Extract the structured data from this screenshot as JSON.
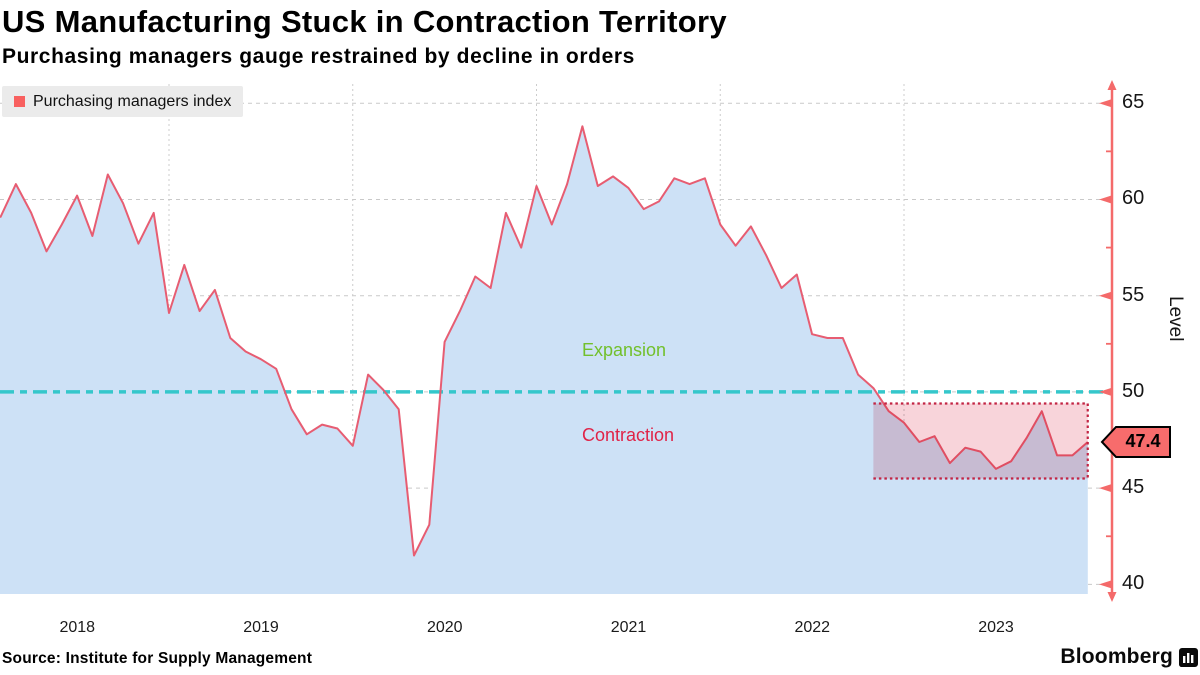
{
  "chart_data": {
    "type": "area",
    "title": "US Manufacturing Stuck in Contraction Territory",
    "subtitle": "Purchasing managers gauge restrained by decline in orders",
    "source": "Source: Institute for Supply Management",
    "brand": "Bloomberg",
    "ylabel": "Level",
    "ylim": [
      39.5,
      66
    ],
    "y_ticks": [
      40,
      45,
      50,
      55,
      60,
      65
    ],
    "y_minor_ticks": [
      42.5,
      47.5,
      52.5,
      57.5,
      62.5
    ],
    "x_tick_labels": [
      "2018",
      "2019",
      "2020",
      "2021",
      "2022",
      "2023"
    ],
    "grid": true,
    "legend_position": "top-left",
    "series": [
      {
        "name": "Purchasing managers index",
        "start_month": "2017-12",
        "end_month": "2023-12",
        "frequency": "monthly",
        "values": [
          59.3,
          59.1,
          60.8,
          59.3,
          57.3,
          58.7,
          60.2,
          58.1,
          61.3,
          59.8,
          57.7,
          59.3,
          54.1,
          56.6,
          54.2,
          55.3,
          52.8,
          52.1,
          51.7,
          51.2,
          49.1,
          47.8,
          48.3,
          48.1,
          47.2,
          50.9,
          50.1,
          49.1,
          41.5,
          43.1,
          52.6,
          54.2,
          56.0,
          55.4,
          59.3,
          57.5,
          60.7,
          58.7,
          60.8,
          63.8,
          60.7,
          61.2,
          60.6,
          59.5,
          59.9,
          61.1,
          60.8,
          61.1,
          58.7,
          57.6,
          58.6,
          57.1,
          55.4,
          56.1,
          53.0,
          52.8,
          52.8,
          50.9,
          50.2,
          49.0,
          48.4,
          47.4,
          47.7,
          46.3,
          47.1,
          46.9,
          46.0,
          46.4,
          47.6,
          49.0,
          46.7,
          46.7,
          47.4
        ]
      }
    ],
    "threshold": {
      "value": 50,
      "above_label": "Expansion",
      "below_label": "Contraction"
    },
    "highlight_band": {
      "start_month": "2022-10",
      "end_month": "2023-12",
      "top": 49.4,
      "bottom": 45.5
    },
    "last_value": 47.4,
    "last_value_label": "47.4",
    "colors": {
      "line": "#e75d72",
      "area_fill": "#cde1f6",
      "axis": "#f46a6a",
      "threshold_line": "#35c7cb",
      "expansion_label": "#72c02c",
      "contraction_label": "#e02347",
      "band_fill": "#f8d4da",
      "band_border": "#c22443",
      "legend_swatch": "#f8605f",
      "badge_fill": "#f76c6c",
      "grid": "#c9c9c9"
    }
  }
}
